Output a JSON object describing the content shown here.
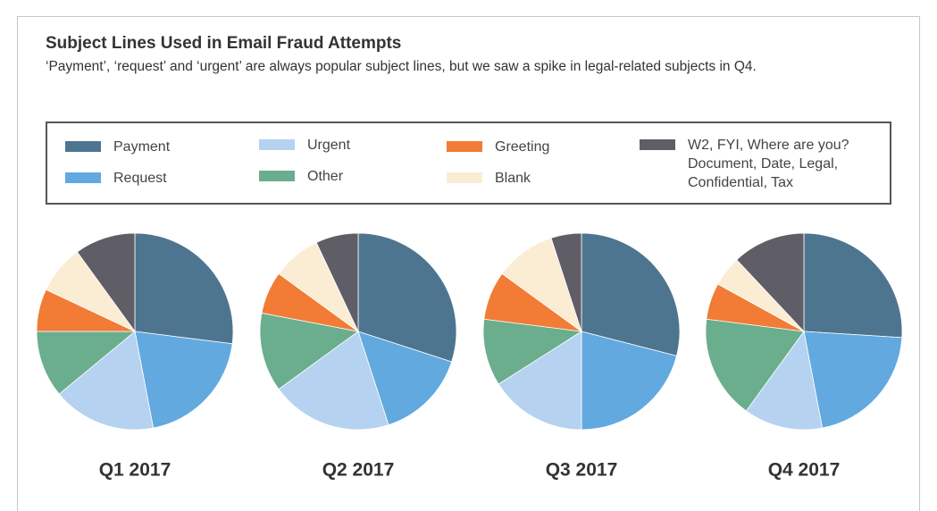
{
  "chart_data": {
    "type": "pie",
    "title": "Subject Lines Used in Email Fraud Attempts",
    "subtitle": "‘Payment’, ‘request’ and ‘urgent’ are always popular subject lines, but we saw a spike in legal-related subjects in Q4.",
    "categories": [
      "Payment",
      "Request",
      "Urgent",
      "Other",
      "Greeting",
      "Blank",
      "W2, FYI, Where are you? Document, Date, Legal, Confidential, Tax"
    ],
    "colors": [
      "#4e7590",
      "#62a9e0",
      "#b5d2f0",
      "#6aae8e",
      "#f27b36",
      "#fbecd4",
      "#5f5e66"
    ],
    "pies": [
      {
        "label": "Q1 2017",
        "values": [
          27,
          20,
          17,
          11,
          7,
          8,
          10
        ]
      },
      {
        "label": "Q2 2017",
        "values": [
          30,
          15,
          20,
          13,
          7,
          8,
          7
        ]
      },
      {
        "label": "Q3 2017",
        "values": [
          29,
          21,
          16,
          11,
          8,
          10,
          5
        ]
      },
      {
        "label": "Q4 2017",
        "values": [
          26,
          21,
          13,
          17,
          6,
          5,
          12
        ]
      }
    ]
  }
}
